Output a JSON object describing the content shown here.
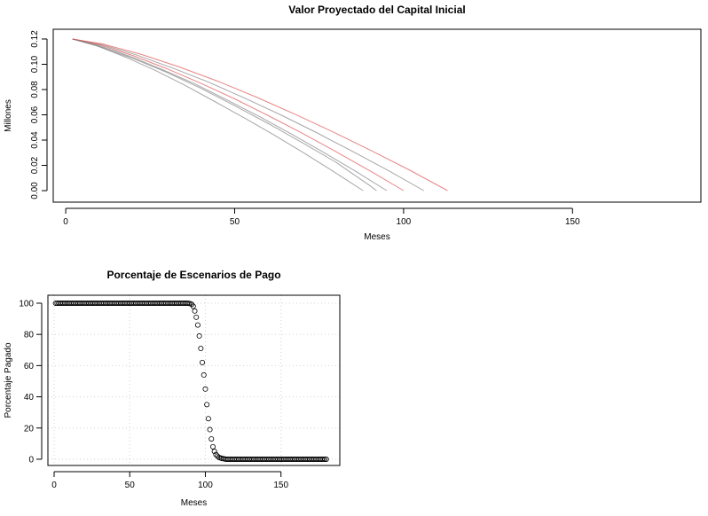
{
  "chart_data": [
    {
      "type": "line",
      "title": "Valor Proyectado del Capital Inicial",
      "x_label": "Meses",
      "y_label": "Millones",
      "xlim": [
        -3.7,
        188
      ],
      "ylim": [
        -0.0091,
        0.1277
      ],
      "xticks": [
        0,
        50,
        100,
        150
      ],
      "yticks": [
        {
          "value": 0,
          "label": "0.00"
        },
        0.02,
        0.04,
        0.06,
        0.08,
        {
          "value": 0.1,
          "label": "0.10"
        },
        0.12
      ],
      "series": [
        {
          "color": "#808080",
          "x": [
            2,
            9.0,
            17.8,
            26.6,
            35.4,
            44.1,
            52.9,
            61.7,
            70.5,
            79.3,
            88
          ],
          "values": [
            0.12,
            0.1148,
            0.1055,
            0.095,
            0.0832,
            0.0705,
            0.0575,
            0.044,
            0.0298,
            0.015,
            0
          ]
        },
        {
          "color": "#808080",
          "x": [
            2,
            9.6,
            19.1,
            28.6,
            38.2,
            47.7,
            57.2,
            66.7,
            76.2,
            85.7,
            95
          ],
          "values": [
            0.12,
            0.115,
            0.1062,
            0.0958,
            0.0845,
            0.0718,
            0.0588,
            0.045,
            0.0305,
            0.0155,
            0
          ]
        },
        {
          "color": "#e05050",
          "x": [
            2,
            10,
            20,
            30,
            40,
            50,
            60,
            70,
            80,
            90,
            100
          ],
          "values": [
            0.12,
            0.1154,
            0.1067,
            0.0964,
            0.085,
            0.0726,
            0.0593,
            0.0454,
            0.0308,
            0.0157,
            0
          ]
        },
        {
          "color": "#808080",
          "x": [
            2,
            10.5,
            21.1,
            31.7,
            42.3,
            53.0,
            63.6,
            74.2,
            84.8,
            95.4,
            106
          ],
          "values": [
            0.12,
            0.1158,
            0.1072,
            0.097,
            0.0858,
            0.0732,
            0.06,
            0.046,
            0.0312,
            0.016,
            0
          ]
        },
        {
          "color": "#808080",
          "x": [
            2,
            10.0,
            20.0,
            30.0,
            40.0,
            50.0,
            60.0,
            70.0,
            80.0,
            90.0,
            92
          ],
          "values": [
            0.12,
            0.114,
            0.1045,
            0.0935,
            0.081,
            0.0672,
            0.053,
            0.038,
            0.0225,
            0.004,
            0
          ]
        },
        {
          "color": "#e05050",
          "x": [
            2,
            11.1,
            22.4,
            33.7,
            45.0,
            56.4,
            67.7,
            79.0,
            90.3,
            101.6,
            113
          ],
          "values": [
            0.12,
            0.116,
            0.1078,
            0.0978,
            0.0866,
            0.074,
            0.0606,
            0.0466,
            0.0318,
            0.0165,
            0
          ]
        }
      ]
    },
    {
      "type": "scatter",
      "title": "Porcentaje de Escenarios de Pago",
      "x_label": "Meses",
      "y_label": "Porcentaje Pagado",
      "xlim": [
        -4.1,
        188.9
      ],
      "ylim": [
        -4,
        105.1
      ],
      "xticks": [
        0,
        50,
        100,
        150
      ],
      "yticks": [
        0,
        20,
        40,
        60,
        80,
        100
      ],
      "grid": true,
      "x": [
        1,
        2,
        3,
        4,
        5,
        6,
        7,
        8,
        9,
        10,
        11,
        12,
        13,
        14,
        15,
        16,
        17,
        18,
        19,
        20,
        21,
        22,
        23,
        24,
        25,
        26,
        27,
        28,
        29,
        30,
        31,
        32,
        33,
        34,
        35,
        36,
        37,
        38,
        39,
        40,
        41,
        42,
        43,
        44,
        45,
        46,
        47,
        48,
        49,
        50,
        51,
        52,
        53,
        54,
        55,
        56,
        57,
        58,
        59,
        60,
        61,
        62,
        63,
        64,
        65,
        66,
        67,
        68,
        69,
        70,
        71,
        72,
        73,
        74,
        75,
        76,
        77,
        78,
        79,
        80,
        81,
        82,
        83,
        84,
        85,
        86,
        87,
        88,
        89,
        90,
        91,
        92,
        93,
        94,
        95,
        96,
        97,
        98,
        99,
        100,
        101,
        102,
        103,
        104,
        105,
        106,
        107,
        108,
        109,
        110,
        111,
        112,
        113,
        114,
        115,
        116,
        117,
        118,
        119,
        120,
        121,
        122,
        123,
        124,
        125,
        126,
        127,
        128,
        129,
        130,
        131,
        132,
        133,
        134,
        135,
        136,
        137,
        138,
        139,
        140,
        141,
        142,
        143,
        144,
        145,
        146,
        147,
        148,
        149,
        150,
        151,
        152,
        153,
        154,
        155,
        156,
        157,
        158,
        159,
        160,
        161,
        162,
        163,
        164,
        165,
        166,
        167,
        168,
        169,
        170,
        171,
        172,
        173,
        174,
        175,
        176,
        177,
        178,
        179,
        180
      ],
      "values": [
        100,
        100,
        100,
        100,
        100,
        100,
        100,
        100,
        100,
        100,
        100,
        100,
        100,
        100,
        100,
        100,
        100,
        100,
        100,
        100,
        100,
        100,
        100,
        100,
        100,
        100,
        100,
        100,
        100,
        100,
        100,
        100,
        100,
        100,
        100,
        100,
        100,
        100,
        100,
        100,
        100,
        100,
        100,
        100,
        100,
        100,
        100,
        100,
        100,
        100,
        100,
        100,
        100,
        100,
        100,
        100,
        100,
        100,
        100,
        100,
        100,
        100,
        100,
        100,
        100,
        100,
        100,
        100,
        100,
        100,
        100,
        100,
        100,
        100,
        100,
        100,
        100,
        100,
        100,
        100,
        100,
        100,
        100,
        100,
        100,
        100,
        100,
        100,
        99.9,
        99.7,
        99.3,
        98,
        95,
        91,
        86,
        79,
        71,
        62,
        54,
        45,
        35,
        26,
        19,
        13,
        8,
        5,
        3,
        2,
        1.2,
        0.8,
        0.5,
        0.3,
        0.1,
        0,
        0,
        0,
        0,
        0,
        0,
        0,
        0,
        0,
        0,
        0,
        0,
        0,
        0,
        0,
        0,
        0,
        0,
        0,
        0,
        0,
        0,
        0,
        0,
        0,
        0,
        0,
        0,
        0,
        0,
        0,
        0,
        0,
        0,
        0,
        0,
        0,
        0,
        0,
        0,
        0,
        0,
        0,
        0,
        0,
        0,
        0,
        0,
        0,
        0,
        0,
        0,
        0,
        0,
        0,
        0,
        0,
        0,
        0,
        0,
        0,
        0,
        0,
        0,
        0,
        0,
        0
      ],
      "color": "#000000"
    }
  ]
}
